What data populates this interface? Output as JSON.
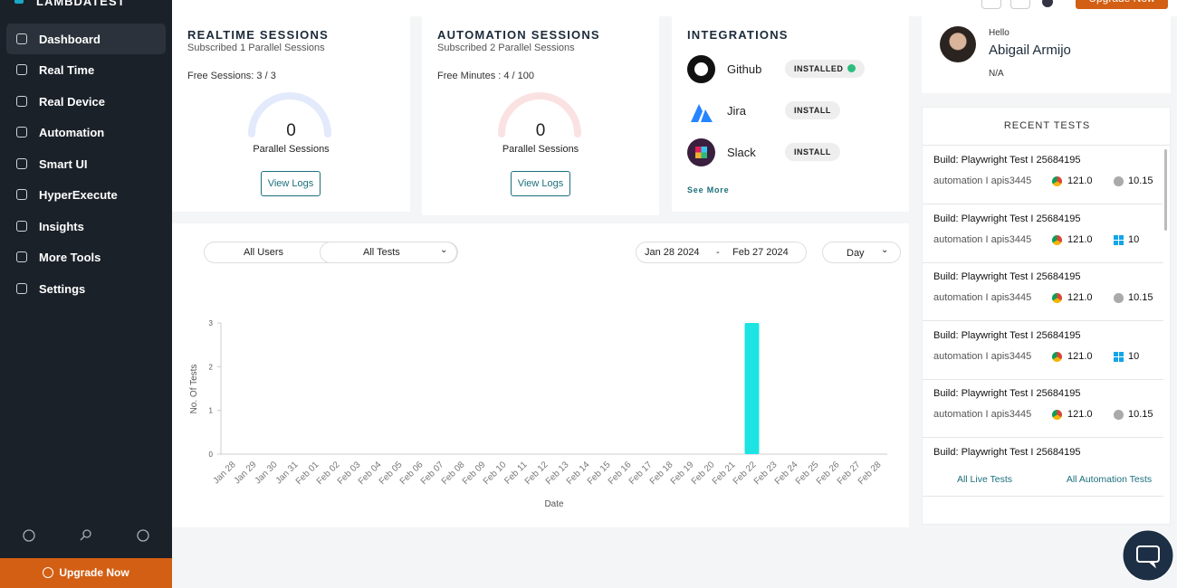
{
  "sidebar": {
    "logo": "LAMBDATEST",
    "nav": [
      "Dashboard",
      "Real Time",
      "Real Device",
      "Automation",
      "Smart UI",
      "HyperExecute",
      "Insights",
      "More Tools",
      "Settings"
    ],
    "upgrade": "Upgrade Now"
  },
  "topbar": {
    "upgrade": "Upgrade Now"
  },
  "realtime": {
    "title": "REALTIME SESSIONS",
    "subtitle": "Subscribed 1 Parallel Sessions",
    "usage": "Free Sessions: 3 / 3",
    "gauge_value": 0,
    "gauge_label": "Parallel Sessions",
    "button": "View Logs"
  },
  "automation": {
    "title": "AUTOMATION SESSIONS",
    "subtitle": "Subscribed 2 Parallel Sessions",
    "usage": "Free Minutes : 4 / 100",
    "gauge_value": 0,
    "gauge_label": "Parallel Sessions",
    "button": "View Logs"
  },
  "integrations": {
    "title": "INTEGRATIONS",
    "items": [
      {
        "name": "Github",
        "status": "INSTALLED"
      },
      {
        "name": "Jira",
        "status": "INSTALL"
      },
      {
        "name": "Slack",
        "status": "INSTALL"
      }
    ],
    "see_more": "See More"
  },
  "profile": {
    "greeting": "Hello",
    "name": "Abigail Armijo",
    "role": "N/A"
  },
  "recent_tests": {
    "title": "RECENT TESTS",
    "items": [
      {
        "build": "Build: Playwright Test I 25684195",
        "meta": "automation I apis3445",
        "browser": "121.0",
        "os": "10.15",
        "icon": "apple"
      },
      {
        "build": "Build: Playwright Test I 25684195",
        "meta": "automation I apis3445",
        "browser": "121.0",
        "os": "10",
        "icon": "windows"
      },
      {
        "build": "Build: Playwright Test I 25684195",
        "meta": "automation I apis3445",
        "browser": "121.0",
        "os": "10.15",
        "icon": "apple"
      },
      {
        "build": "Build: Playwright Test I 25684195",
        "meta": "automation I apis3445",
        "browser": "121.0",
        "os": "10",
        "icon": "windows"
      },
      {
        "build": "Build: Playwright Test I 25684195",
        "meta": "automation I apis3445",
        "browser": "121.0",
        "os": "10.15",
        "icon": "apple"
      },
      {
        "build": "Build: Playwright Test I 25684195"
      }
    ],
    "links": [
      "All Live Tests",
      "All Automation Tests"
    ]
  },
  "filters": {
    "users": "All Users",
    "tests": "All Tests",
    "date_from": "Jan 28 2024",
    "date_sep": "-",
    "date_to": "Feb 27 2024",
    "interval": "Day"
  },
  "chart_data": {
    "type": "bar",
    "x_label": "Date",
    "y_label": "No. Of Tests",
    "categories": [
      "Jan 28",
      "Jan 29",
      "Jan 30",
      "Jan 31",
      "Feb 01",
      "Feb 02",
      "Feb 03",
      "Feb 04",
      "Feb 05",
      "Feb 06",
      "Feb 07",
      "Feb 08",
      "Feb 09",
      "Feb 10",
      "Feb 11",
      "Feb 12",
      "Feb 13",
      "Feb 14",
      "Feb 15",
      "Feb 16",
      "Feb 17",
      "Feb 18",
      "Feb 19",
      "Feb 20",
      "Feb 21",
      "Feb 22",
      "Feb 23",
      "Feb 24",
      "Feb 25",
      "Feb 26",
      "Feb 27",
      "Feb 28"
    ],
    "values": [
      0,
      0,
      0,
      0,
      0,
      0,
      0,
      0,
      0,
      0,
      0,
      0,
      0,
      0,
      0,
      0,
      0,
      0,
      0,
      0,
      0,
      0,
      0,
      0,
      0,
      3,
      0,
      0,
      0,
      0,
      0,
      0
    ],
    "color": "#1ee3e3",
    "ylim": [
      0,
      3
    ],
    "yticks": [
      0,
      1,
      2,
      3
    ],
    "grid": false
  }
}
